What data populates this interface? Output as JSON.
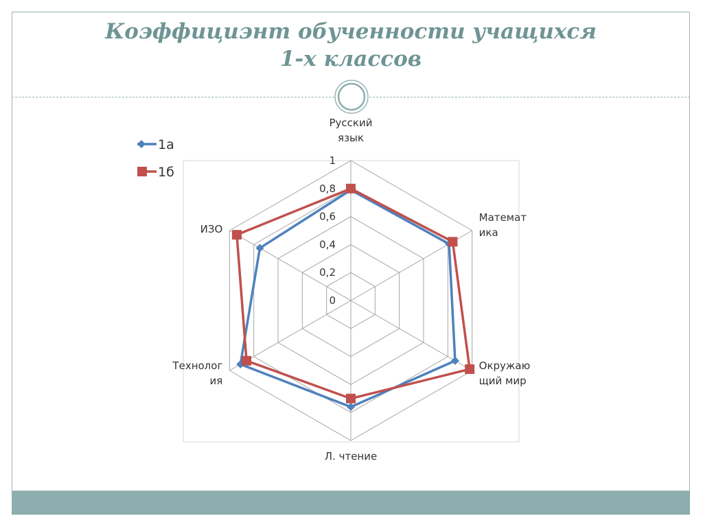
{
  "slide": {
    "title_line1": "Коэффициэнт обученности учащихся",
    "title_line2": "1-х классов"
  },
  "chart_data": {
    "type": "radar",
    "title": "",
    "categories": [
      [
        "Русский",
        "язык"
      ],
      [
        "Математ",
        "ика"
      ],
      [
        "Окружаю",
        "щий мир"
      ],
      [
        "Л. чтение"
      ],
      [
        "Технолог",
        "ия"
      ],
      [
        "ИЗО"
      ]
    ],
    "radial_ticks": [
      "0",
      "0,2",
      "0,4",
      "0,6",
      "0,8",
      "1"
    ],
    "rlim": [
      0,
      1
    ],
    "grid": true,
    "legend_position": "top-left",
    "series": [
      {
        "name": "1а",
        "color": "#4f81bd",
        "marker": "diamond",
        "values": [
          0.79,
          0.81,
          0.86,
          0.76,
          0.91,
          0.75
        ]
      },
      {
        "name": "1б",
        "color": "#c0504d",
        "marker": "square",
        "values": [
          0.8,
          0.84,
          0.98,
          0.7,
          0.86,
          0.94
        ]
      }
    ]
  }
}
